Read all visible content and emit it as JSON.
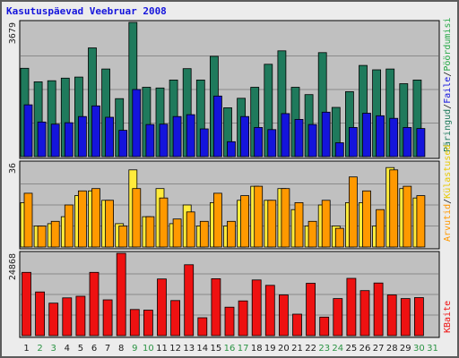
{
  "chart_data": {
    "type": "bar",
    "title": "Kasutuspäevad Veebruar 2008",
    "days": [
      "1",
      "2",
      "3",
      "4",
      "5",
      "6",
      "7",
      "8",
      "9",
      "10",
      "11",
      "12",
      "13",
      "14",
      "15",
      "16",
      "17",
      "18",
      "19",
      "20",
      "21",
      "22",
      "23",
      "24",
      "25",
      "26",
      "27",
      "28",
      "29",
      "30",
      "31"
    ],
    "weekend_days": [
      2,
      3,
      9,
      10,
      16,
      17,
      23,
      24,
      30,
      31
    ],
    "panels": [
      {
        "id": "hits",
        "max_label": "3679",
        "ymax": 3679,
        "series": [
          {
            "name": "Päringud",
            "color": "#1f7a5c",
            "values": [
              2420,
              2050,
              2080,
              2150,
              2180,
              2980,
              2400,
              1590,
              3679,
              1900,
              1880,
              2100,
              2410,
              2100,
              2750,
              1340,
              1600,
              1900,
              2530,
              2900,
              1900,
              1700,
              2850,
              1350,
              1780,
              2500,
              2380,
              2400,
              2000,
              2100
            ]
          },
          {
            "name": "Faile",
            "color": "#1414dc",
            "values": [
              1420,
              950,
              890,
              930,
              1100,
              1390,
              1080,
              720,
              1840,
              880,
              890,
              1100,
              1150,
              760,
              1660,
              410,
              1100,
              800,
              740,
              1180,
              1020,
              880,
              1220,
              380,
              800,
              1190,
              1120,
              1050,
              800,
              770
            ]
          }
        ]
      },
      {
        "id": "visits",
        "max_label": "36",
        "ymax": 36,
        "series": [
          {
            "name": "Külastused",
            "color": "#ffeb3b",
            "values": [
              19,
              9,
              10,
              13,
              22,
              24,
              20,
              10,
              33,
              13,
              25,
              10,
              18,
              9,
              19,
              9,
              20,
              26,
              20,
              25,
              16,
              9,
              18,
              9,
              19,
              19,
              9,
              34,
              25,
              21
            ]
          },
          {
            "name": "Arvutid",
            "color": "#ff9900",
            "values": [
              23,
              9,
              11,
              18,
              24,
              25,
              20,
              9,
              25,
              13,
              21,
              12,
              15,
              11,
              23,
              11,
              22,
              26,
              20,
              25,
              19,
              11,
              20,
              8,
              30,
              24,
              16,
              33,
              26,
              22
            ]
          }
        ]
      },
      {
        "id": "kbytes",
        "max_label": "24868",
        "ymax": 24868,
        "series": [
          {
            "name": "KBaite",
            "color": "#ee1111",
            "values": [
              19100,
              13200,
              9800,
              11400,
              11900,
              19100,
              10800,
              24868,
              7900,
              7700,
              17100,
              10600,
              21400,
              5400,
              17200,
              8600,
              10500,
              16800,
              15200,
              12300,
              6500,
              15800,
              5600,
              11200,
              17300,
              13600,
              15900,
              12300,
              11200,
              11500
            ]
          }
        ]
      }
    ],
    "side_labels": {
      "hits": [
        {
          "text": "Päringud",
          "color": "#1f7a5c"
        },
        {
          "text": "Faile",
          "color": "#1414dc"
        },
        {
          "text": "Pöördumisi",
          "color": "#27a847"
        }
      ],
      "visits": [
        {
          "text": "Arvutid",
          "color": "#ff9900"
        },
        {
          "text": "Külastused",
          "color": "#e8c800"
        }
      ],
      "kbytes": [
        {
          "text": "KBaite",
          "color": "#ee1111"
        }
      ]
    },
    "colors": {
      "weekday": "#1a1a1a",
      "weekend": "#2b9444",
      "plot_bg": "#c0c0c0",
      "grid": "#8a8a8a"
    }
  }
}
